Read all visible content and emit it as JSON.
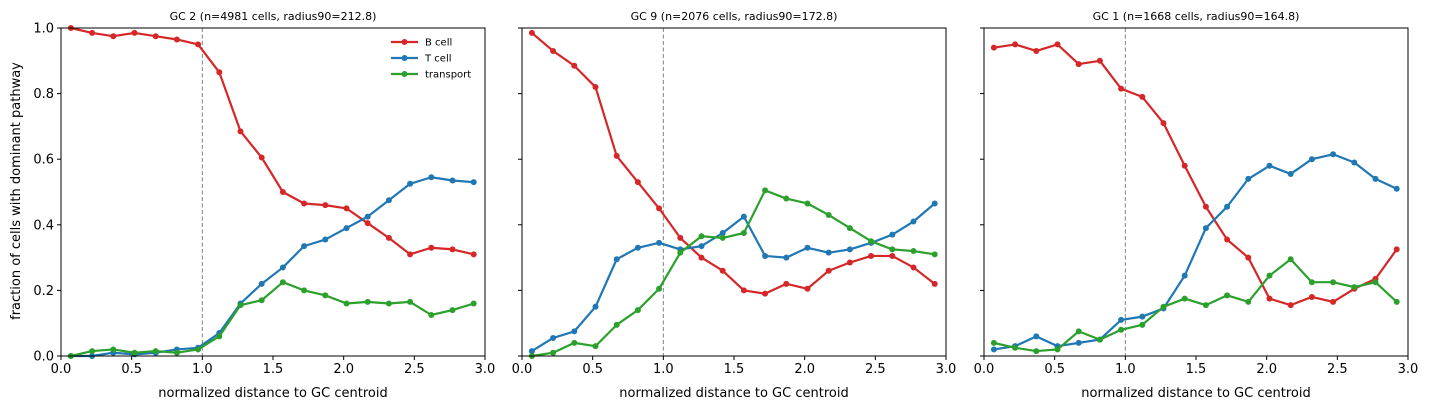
{
  "figure": {
    "shared_ylabel": "fraction of cells with dominant pathway"
  },
  "colors": {
    "B cell": "#d62728",
    "T cell": "#1f77b4",
    "transport": "#2ca02c",
    "reference_line": "#808080"
  },
  "chart_data": [
    {
      "type": "line",
      "title": "GC 2  (n=4981 cells, radius90=212.8)",
      "xlabel": "normalized distance to GC centroid",
      "ylabel": "fraction of cells with dominant pathway",
      "xlim": [
        0.0,
        3.0
      ],
      "ylim": [
        0.0,
        1.0
      ],
      "xticks": [
        "0.0",
        "0.5",
        "1.0",
        "1.5",
        "2.0",
        "2.5",
        "3.0"
      ],
      "yticks": [
        "0.0",
        "0.2",
        "0.4",
        "0.6",
        "0.8",
        "1.0"
      ],
      "reference_x": 1.0,
      "legend": {
        "location": "upper right",
        "entries": [
          "B cell",
          "T cell",
          "transport"
        ]
      },
      "x": [
        0.07,
        0.22,
        0.37,
        0.52,
        0.67,
        0.82,
        0.97,
        1.12,
        1.27,
        1.42,
        1.57,
        1.72,
        1.87,
        2.02,
        2.17,
        2.32,
        2.47,
        2.62,
        2.77,
        2.92
      ],
      "series": [
        {
          "name": "B cell",
          "values": [
            1.0,
            0.985,
            0.975,
            0.985,
            0.975,
            0.965,
            0.95,
            0.865,
            0.685,
            0.605,
            0.5,
            0.465,
            0.46,
            0.45,
            0.405,
            0.36,
            0.31,
            0.33,
            0.325,
            0.31
          ]
        },
        {
          "name": "T cell",
          "values": [
            0.0,
            0.0,
            0.01,
            0.005,
            0.01,
            0.02,
            0.025,
            0.07,
            0.16,
            0.22,
            0.27,
            0.335,
            0.355,
            0.39,
            0.425,
            0.475,
            0.525,
            0.545,
            0.535,
            0.53
          ]
        },
        {
          "name": "transport",
          "values": [
            0.0,
            0.015,
            0.02,
            0.01,
            0.015,
            0.01,
            0.02,
            0.06,
            0.155,
            0.17,
            0.225,
            0.2,
            0.185,
            0.16,
            0.165,
            0.16,
            0.165,
            0.125,
            0.14,
            0.16
          ]
        }
      ]
    },
    {
      "type": "line",
      "title": "GC 9  (n=2076 cells, radius90=172.8)",
      "xlabel": "normalized distance to GC centroid",
      "ylabel": "",
      "xlim": [
        0.0,
        3.0
      ],
      "ylim": [
        0.0,
        1.0
      ],
      "xticks": [
        "0.0",
        "0.5",
        "1.0",
        "1.5",
        "2.0",
        "2.5",
        "3.0"
      ],
      "yticks": [],
      "reference_x": 1.0,
      "x": [
        0.07,
        0.22,
        0.37,
        0.52,
        0.67,
        0.82,
        0.97,
        1.12,
        1.27,
        1.42,
        1.57,
        1.72,
        1.87,
        2.02,
        2.17,
        2.32,
        2.47,
        2.62,
        2.77,
        2.92
      ],
      "series": [
        {
          "name": "B cell",
          "values": [
            0.985,
            0.93,
            0.885,
            0.82,
            0.61,
            0.53,
            0.45,
            0.36,
            0.3,
            0.26,
            0.2,
            0.19,
            0.22,
            0.205,
            0.26,
            0.285,
            0.305,
            0.305,
            0.27,
            0.22
          ]
        },
        {
          "name": "T cell",
          "values": [
            0.015,
            0.055,
            0.075,
            0.15,
            0.295,
            0.33,
            0.345,
            0.325,
            0.335,
            0.375,
            0.425,
            0.305,
            0.3,
            0.33,
            0.315,
            0.325,
            0.345,
            0.37,
            0.41,
            0.465
          ]
        },
        {
          "name": "transport",
          "values": [
            0.0,
            0.01,
            0.04,
            0.03,
            0.095,
            0.14,
            0.205,
            0.315,
            0.365,
            0.36,
            0.375,
            0.505,
            0.48,
            0.465,
            0.43,
            0.39,
            0.35,
            0.325,
            0.32,
            0.31
          ]
        }
      ]
    },
    {
      "type": "line",
      "title": "GC 1  (n=1668 cells, radius90=164.8)",
      "xlabel": "normalized distance to GC centroid",
      "ylabel": "",
      "xlim": [
        0.0,
        3.0
      ],
      "ylim": [
        0.0,
        1.0
      ],
      "xticks": [
        "0.0",
        "0.5",
        "1.0",
        "1.5",
        "2.0",
        "2.5",
        "3.0"
      ],
      "yticks": [],
      "reference_x": 1.0,
      "x": [
        0.07,
        0.22,
        0.37,
        0.52,
        0.67,
        0.82,
        0.97,
        1.12,
        1.27,
        1.42,
        1.57,
        1.72,
        1.87,
        2.02,
        2.17,
        2.32,
        2.47,
        2.62,
        2.77,
        2.92
      ],
      "series": [
        {
          "name": "B cell",
          "values": [
            0.94,
            0.95,
            0.93,
            0.95,
            0.89,
            0.9,
            0.815,
            0.79,
            0.71,
            0.58,
            0.455,
            0.355,
            0.3,
            0.175,
            0.155,
            0.18,
            0.165,
            0.205,
            0.235,
            0.325
          ]
        },
        {
          "name": "T cell",
          "values": [
            0.02,
            0.03,
            0.06,
            0.03,
            0.04,
            0.05,
            0.11,
            0.12,
            0.145,
            0.245,
            0.39,
            0.455,
            0.54,
            0.58,
            0.555,
            0.6,
            0.615,
            0.59,
            0.54,
            0.51
          ]
        },
        {
          "name": "transport",
          "values": [
            0.04,
            0.025,
            0.015,
            0.02,
            0.075,
            0.05,
            0.08,
            0.095,
            0.15,
            0.175,
            0.155,
            0.185,
            0.165,
            0.245,
            0.295,
            0.225,
            0.225,
            0.21,
            0.225,
            0.165
          ]
        }
      ]
    }
  ]
}
